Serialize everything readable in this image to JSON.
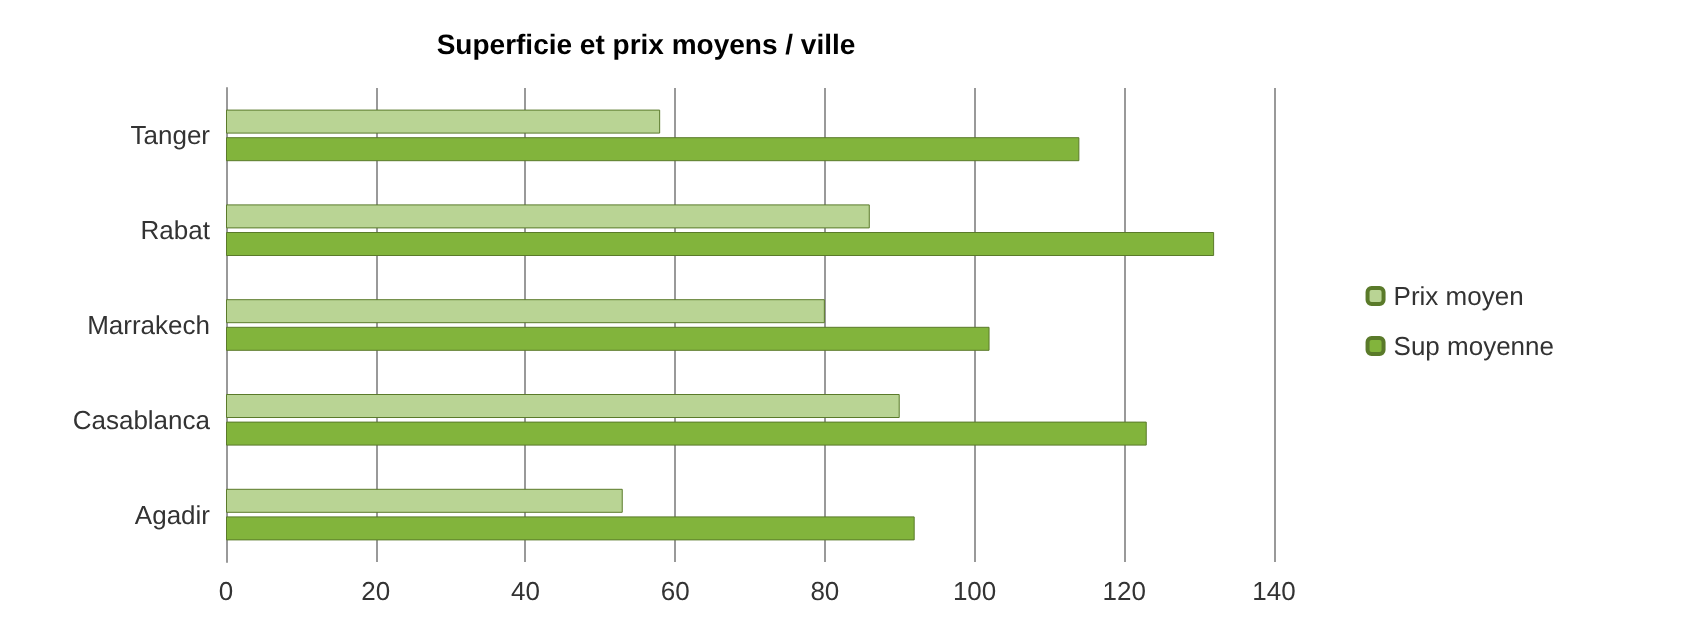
{
  "chart_data": {
    "type": "bar",
    "orientation": "horizontal",
    "title": "Superficie et prix moyens / ville",
    "categories": [
      "Tanger",
      "Rabat",
      "Marrakech",
      "Casablanca",
      "Agadir"
    ],
    "series": [
      {
        "name": "Prix moyen",
        "color": "#b9d494",
        "values": [
          58,
          86,
          80,
          90,
          53
        ]
      },
      {
        "name": "Sup moyenne",
        "color": "#82b43c",
        "values": [
          114,
          132,
          102,
          123,
          92
        ]
      }
    ],
    "xlim": [
      0,
      140
    ],
    "xticks": [
      0,
      20,
      40,
      60,
      80,
      100,
      120,
      140
    ],
    "grid": "x",
    "legend": "right"
  }
}
